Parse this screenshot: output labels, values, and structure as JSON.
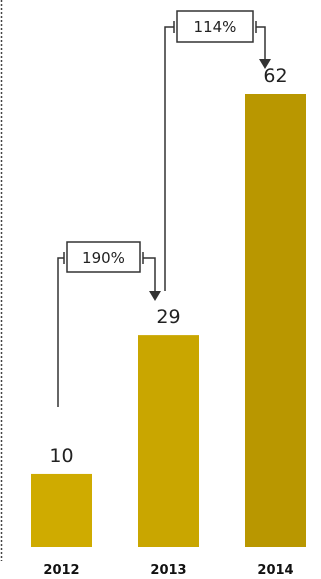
{
  "chart_data": {
    "type": "bar",
    "categories": [
      "2012",
      "2013",
      "2014"
    ],
    "values": [
      10,
      29,
      62
    ],
    "value_labels": [
      "10",
      "29",
      "62"
    ],
    "bar_colors": [
      "#cfab00",
      "#c9a600",
      "#b99700"
    ],
    "ylim": [
      0,
      62
    ],
    "title": "",
    "xlabel": "",
    "ylabel": "",
    "grid": false,
    "legend": "none",
    "annotations": [
      {
        "from": "2012",
        "to": "2013",
        "text": "190%"
      },
      {
        "from": "2013",
        "to": "2014",
        "text": "114%"
      }
    ]
  },
  "style": {
    "connector_color": "#333333",
    "border_color": "#444444"
  }
}
